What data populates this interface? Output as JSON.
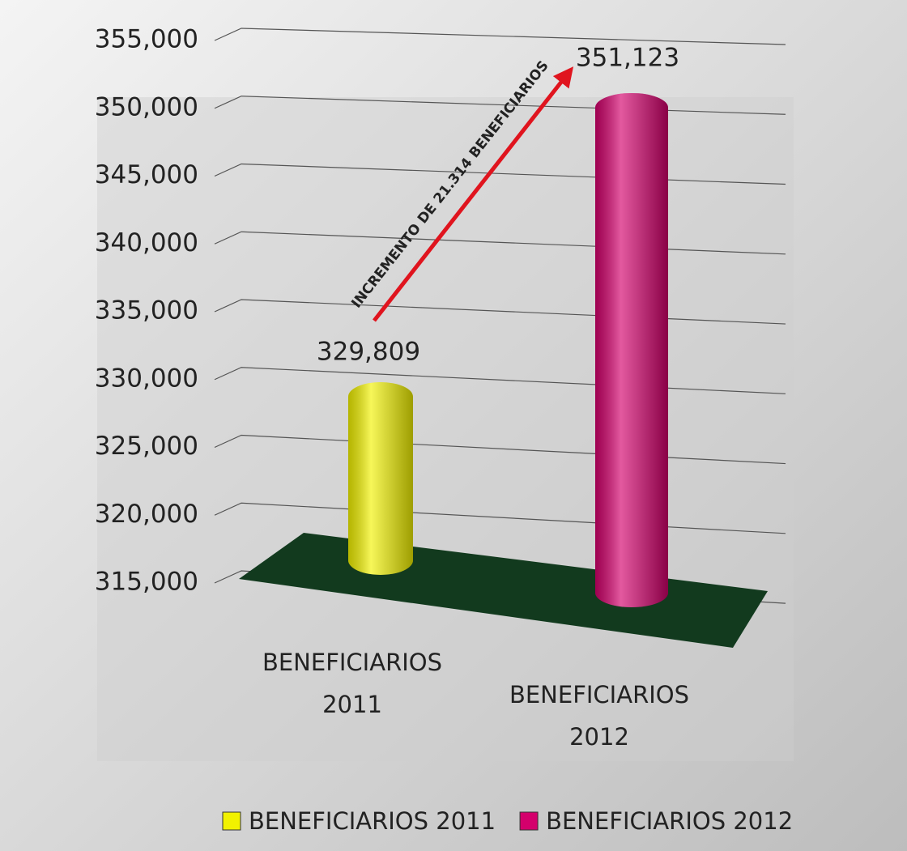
{
  "chart_data": {
    "type": "bar",
    "categories": [
      "BENEFICIARIOS 2011",
      "BENEFICIARIOS 2012"
    ],
    "series": [
      {
        "name": "BENEFICIARIOS 2011",
        "color": "#f2f200",
        "values": [
          329809,
          null
        ],
        "value_labels": [
          "329,809",
          null
        ]
      },
      {
        "name": "BENEFICIARIOS 2012",
        "color": "#d4006c",
        "values": [
          null,
          351123
        ],
        "value_labels": [
          null,
          "351,123"
        ]
      }
    ],
    "ylim": [
      315000,
      355000
    ],
    "yticks": [
      {
        "value": 315000,
        "label": "315,000"
      },
      {
        "value": 320000,
        "label": "320,000"
      },
      {
        "value": 325000,
        "label": "325,000"
      },
      {
        "value": 330000,
        "label": "330,000"
      },
      {
        "value": 335000,
        "label": "335,000"
      },
      {
        "value": 340000,
        "label": "340,000"
      },
      {
        "value": 345000,
        "label": "345,000"
      },
      {
        "value": 350000,
        "label": "350,000"
      },
      {
        "value": 355000,
        "label": "355,000"
      }
    ],
    "grid": true,
    "legend": "bottom",
    "annotation": "INCREMENTO DE 21.314 BENEFICIARIOS"
  }
}
